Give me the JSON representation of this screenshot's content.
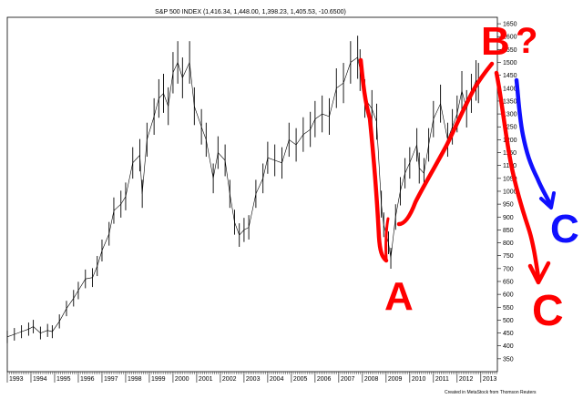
{
  "chart_data": {
    "type": "line",
    "title": "S&P 500 INDEX (1,416.34, 1,448.00, 1,398.23, 1,405.53, -10.6500)",
    "x_labels": [
      "1993",
      "1994",
      "1995",
      "1996",
      "1997",
      "1998",
      "1999",
      "2000",
      "2001",
      "2002",
      "2003",
      "2004",
      "2005",
      "2006",
      "2007",
      "2008",
      "2009",
      "2010",
      "2011",
      "2012",
      "2013"
    ],
    "y_ticks": [
      350,
      400,
      450,
      500,
      550,
      600,
      650,
      700,
      750,
      800,
      850,
      900,
      950,
      1000,
      1050,
      1100,
      1150,
      1200,
      1250,
      1300,
      1350,
      1400,
      1450,
      1500,
      1550,
      1600,
      1650
    ],
    "ylim": [
      300,
      1675
    ],
    "xlim": [
      1993.0,
      2013.7
    ],
    "series": [
      {
        "values": [
          [
            1993.0,
            435
          ],
          [
            1993.3,
            445
          ],
          [
            1993.6,
            455
          ],
          [
            1993.9,
            465
          ],
          [
            1994.1,
            475
          ],
          [
            1994.4,
            450
          ],
          [
            1994.7,
            460
          ],
          [
            1994.9,
            455
          ],
          [
            1995.2,
            495
          ],
          [
            1995.5,
            545
          ],
          [
            1995.8,
            585
          ],
          [
            1996.0,
            615
          ],
          [
            1996.3,
            660
          ],
          [
            1996.6,
            665
          ],
          [
            1996.8,
            710
          ],
          [
            1997.0,
            770
          ],
          [
            1997.3,
            835
          ],
          [
            1997.5,
            925
          ],
          [
            1997.8,
            950
          ],
          [
            1998.0,
            980
          ],
          [
            1998.3,
            1110
          ],
          [
            1998.6,
            1140
          ],
          [
            1998.7,
            990
          ],
          [
            1998.9,
            1200
          ],
          [
            1999.2,
            1290
          ],
          [
            1999.4,
            1360
          ],
          [
            1999.6,
            1380
          ],
          [
            1999.8,
            1330
          ],
          [
            2000.0,
            1460
          ],
          [
            2000.2,
            1500
          ],
          [
            2000.4,
            1440
          ],
          [
            2000.7,
            1500
          ],
          [
            2000.9,
            1330
          ],
          [
            2001.2,
            1250
          ],
          [
            2001.4,
            1200
          ],
          [
            2001.7,
            1050
          ],
          [
            2001.9,
            1150
          ],
          [
            2002.2,
            1120
          ],
          [
            2002.4,
            990
          ],
          [
            2002.6,
            880
          ],
          [
            2002.8,
            830
          ],
          [
            2003.0,
            850
          ],
          [
            2003.2,
            860
          ],
          [
            2003.5,
            990
          ],
          [
            2003.8,
            1050
          ],
          [
            2004.0,
            1130
          ],
          [
            2004.3,
            1120
          ],
          [
            2004.6,
            1110
          ],
          [
            2004.9,
            1200
          ],
          [
            2005.2,
            1180
          ],
          [
            2005.5,
            1220
          ],
          [
            2005.8,
            1240
          ],
          [
            2006.0,
            1280
          ],
          [
            2006.3,
            1300
          ],
          [
            2006.6,
            1290
          ],
          [
            2006.9,
            1400
          ],
          [
            2007.2,
            1420
          ],
          [
            2007.5,
            1500
          ],
          [
            2007.8,
            1520
          ],
          [
            2007.9,
            1470
          ],
          [
            2008.1,
            1360
          ],
          [
            2008.4,
            1320
          ],
          [
            2008.6,
            1270
          ],
          [
            2008.8,
            950
          ],
          [
            2008.9,
            870
          ],
          [
            2009.1,
            800
          ],
          [
            2009.2,
            740
          ],
          [
            2009.4,
            900
          ],
          [
            2009.6,
            1000
          ],
          [
            2009.8,
            1070
          ],
          [
            2010.0,
            1110
          ],
          [
            2010.3,
            1180
          ],
          [
            2010.4,
            1090
          ],
          [
            2010.6,
            1070
          ],
          [
            2010.8,
            1180
          ],
          [
            2011.0,
            1280
          ],
          [
            2011.3,
            1340
          ],
          [
            2011.6,
            1200
          ],
          [
            2011.8,
            1250
          ],
          [
            2012.0,
            1300
          ],
          [
            2012.2,
            1390
          ],
          [
            2012.4,
            1320
          ],
          [
            2012.6,
            1380
          ],
          [
            2012.8,
            1430
          ],
          [
            2012.9,
            1420
          ]
        ]
      }
    ],
    "grid": false,
    "credit": "Created in MetaStock from Thomson Reuters"
  },
  "annotations": {
    "a": "A",
    "b": "B",
    "question": "?",
    "c_blue": "C",
    "c_red": "C"
  },
  "colors": {
    "red": "#ff0000",
    "blue": "#1010ff",
    "price": "#000000",
    "axis": "#000000"
  }
}
